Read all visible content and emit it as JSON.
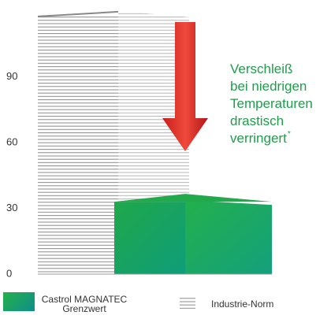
{
  "chart_data": {
    "type": "bar3d",
    "categories": [
      null
    ],
    "series": [
      {
        "name": "Castrol MAGNATEC Grenzwert",
        "color": "#1a9e55",
        "values": [
          33
        ]
      },
      {
        "name": "Industrie-Norm",
        "color": "#9a9a9a",
        "values": [
          120
        ]
      }
    ],
    "ylim": [
      0,
      125
    ],
    "yticks": [
      0,
      30,
      60,
      90
    ],
    "annotation": {
      "lines": [
        "Verschleiß",
        "bei niedrigen",
        "Temperaturen",
        "drastisch",
        "verringert"
      ],
      "mark": "*"
    }
  }
}
